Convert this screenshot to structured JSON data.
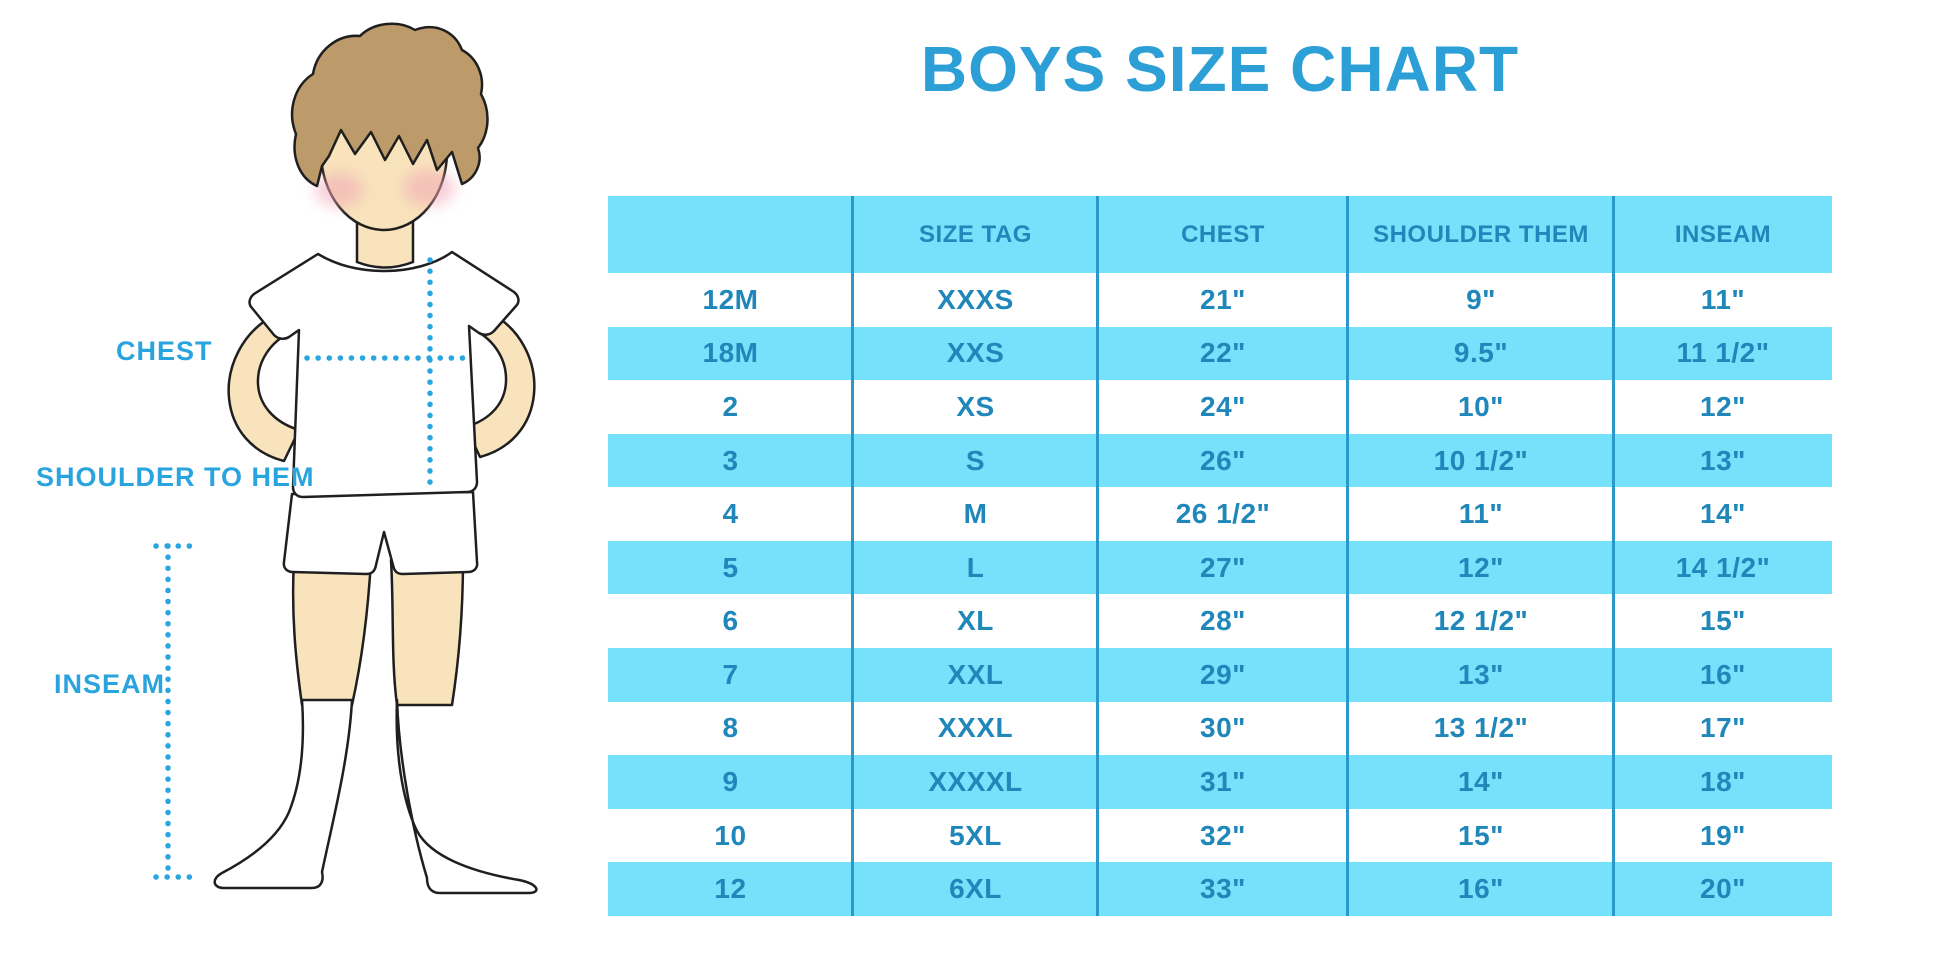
{
  "chart_data": {
    "type": "table",
    "title": "BOYS SIZE CHART",
    "columns": [
      "",
      "SIZE TAG",
      "CHEST",
      "SHOULDER THEM",
      "INSEAM"
    ],
    "rows": [
      [
        "12M",
        "XXXS",
        "21\"",
        "9\"",
        "11\""
      ],
      [
        "18M",
        "XXS",
        "22\"",
        "9.5\"",
        "11 1/2\""
      ],
      [
        "2",
        "XS",
        "24\"",
        "10\"",
        "12\""
      ],
      [
        "3",
        "S",
        "26\"",
        "10 1/2\"",
        "13\""
      ],
      [
        "4",
        "M",
        "26 1/2\"",
        "11\"",
        "14\""
      ],
      [
        "5",
        "L",
        "27\"",
        "12\"",
        "14 1/2\""
      ],
      [
        "6",
        "XL",
        "28\"",
        "12 1/2\"",
        "15\""
      ],
      [
        "7",
        "XXL",
        "29\"",
        "13\"",
        "16\""
      ],
      [
        "8",
        "XXXL",
        "30\"",
        "13 1/2\"",
        "17\""
      ],
      [
        "9",
        "XXXXL",
        "31\"",
        "14\"",
        "18\""
      ],
      [
        "10",
        "5XL",
        "32\"",
        "15\"",
        "19\""
      ],
      [
        "12",
        "6XL",
        "33\"",
        "16\"",
        "20\""
      ]
    ],
    "layout": {
      "header_background": "#76E1FB",
      "alternating_row_background": "#76E1FB",
      "grid": "vertical-dividers-only"
    }
  },
  "diagram": {
    "labels": {
      "chest": "CHEST",
      "shoulder_to_hem": "SHOULDER TO HEM",
      "inseam": "INSEAM"
    }
  },
  "colors": {
    "accent_blue": "#2B9FD6",
    "label_blue": "#29A4DE",
    "dotted_line_blue": "#29A6E0",
    "band_cyan": "#76E1FB",
    "divider_blue": "#2999CB",
    "table_text": "#1F87B9",
    "skin": "#F8E3BC",
    "hair": "#BD9A6A",
    "blush": "#F2A6B6"
  }
}
